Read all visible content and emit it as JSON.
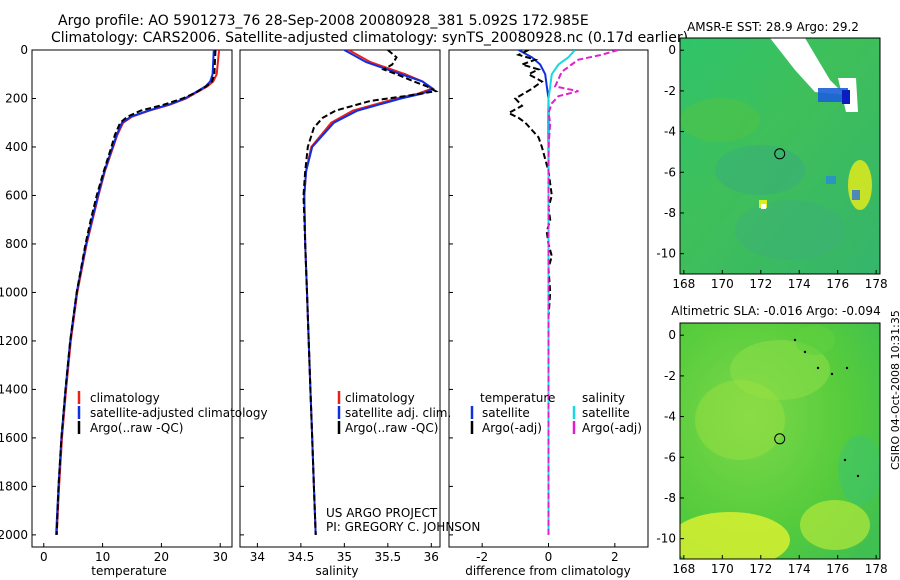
{
  "header": {
    "title_line1": "Argo profile: AO 5901273_76 28-Sep-2008 20080928_381 5.092S 172.985E",
    "title_line2": "Climatology: CARS2006. Satellite-adjusted climatology: synTS_20080928.nc (0.17d earlier)"
  },
  "stamp": "CSIRO 04-Oct-2008 10:31:35",
  "project": {
    "line1": "US ARGO PROJECT",
    "line2": "PI: GREGORY C. JOHNSON"
  },
  "colors": {
    "climatology": "#e8201e",
    "satellite": "#1030e0",
    "argo": "#000000",
    "sat_diff": "#1ad8e0",
    "argo_adj": "#e020d0"
  },
  "depth_axis": {
    "ylim": [
      2050,
      0
    ],
    "ticks": [
      0,
      200,
      400,
      600,
      800,
      1000,
      1200,
      1400,
      1600,
      1800,
      2000
    ]
  },
  "chart_data": [
    {
      "type": "line",
      "id": "temperature",
      "xlabel": "temperature",
      "xlim": [
        -2,
        32
      ],
      "xticks": [
        0,
        10,
        20,
        30
      ],
      "legend": [
        "climatology",
        "satellite-adjusted climatology",
        "Argo(..raw -QC)"
      ],
      "series": [
        {
          "name": "climatology",
          "depth": [
            0,
            50,
            100,
            130,
            150,
            175,
            200,
            225,
            250,
            275,
            300,
            350,
            400,
            500,
            600,
            700,
            800,
            1000,
            1200,
            1400,
            1600,
            1800,
            2000
          ],
          "values": [
            29.8,
            29.6,
            29.4,
            28.8,
            27.8,
            26.0,
            24.2,
            21.5,
            18.0,
            15.0,
            13.5,
            12.5,
            11.8,
            10.4,
            9.3,
            8.3,
            7.3,
            5.7,
            4.6,
            3.8,
            3.1,
            2.6,
            2.2
          ]
        },
        {
          "name": "satellite-adjusted climatology",
          "depth": [
            0,
            50,
            100,
            130,
            150,
            175,
            200,
            225,
            250,
            275,
            300,
            350,
            400,
            500,
            600,
            700,
            800,
            1000,
            1200,
            1400,
            1600,
            1800,
            2000
          ],
          "values": [
            28.9,
            28.8,
            28.7,
            28.3,
            27.5,
            25.8,
            24.0,
            21.3,
            17.8,
            14.8,
            13.3,
            12.4,
            11.7,
            10.3,
            9.2,
            8.2,
            7.2,
            5.6,
            4.5,
            3.7,
            3.0,
            2.5,
            2.1
          ]
        },
        {
          "name": "Argo(..raw -QC)",
          "depth": [
            0,
            50,
            100,
            130,
            150,
            175,
            200,
            225,
            250,
            275,
            300,
            350,
            400,
            500,
            600,
            700,
            800,
            1000,
            1200,
            1400,
            1600,
            1800,
            2000
          ],
          "values": [
            29.2,
            29.1,
            29.0,
            28.6,
            27.6,
            25.9,
            23.6,
            20.5,
            16.5,
            14.2,
            13.0,
            12.1,
            11.5,
            10.2,
            9.0,
            8.0,
            7.1,
            5.6,
            4.5,
            3.7,
            3.0,
            2.5,
            2.2
          ]
        }
      ]
    },
    {
      "type": "line",
      "id": "salinity",
      "xlabel": "salinity",
      "xlim": [
        33.8,
        36.1
      ],
      "xticks": [
        34,
        34.5,
        35,
        35.5,
        36
      ],
      "legend": [
        "climatology",
        "satellite adj. clim.",
        "Argo(..raw -QC)"
      ],
      "series": [
        {
          "name": "climatology",
          "depth": [
            0,
            50,
            100,
            130,
            160,
            180,
            200,
            250,
            300,
            400,
            500,
            600,
            800,
            1000,
            1200,
            1400,
            1600,
            1800,
            2000
          ],
          "values": [
            35.05,
            35.3,
            35.7,
            35.9,
            36.0,
            35.85,
            35.6,
            35.1,
            34.85,
            34.62,
            34.56,
            34.54,
            34.55,
            34.57,
            34.59,
            34.61,
            34.63,
            34.65,
            34.67
          ]
        },
        {
          "name": "satellite adj. clim.",
          "depth": [
            0,
            50,
            100,
            130,
            160,
            180,
            200,
            250,
            300,
            400,
            500,
            600,
            800,
            1000,
            1200,
            1400,
            1600,
            1800,
            2000
          ],
          "values": [
            35.0,
            35.25,
            35.65,
            35.9,
            36.02,
            35.9,
            35.65,
            35.15,
            34.88,
            34.63,
            34.56,
            34.54,
            34.55,
            34.57,
            34.59,
            34.61,
            34.63,
            34.65,
            34.67
          ]
        },
        {
          "name": "Argo(..raw -QC)",
          "depth": [
            0,
            30,
            60,
            80,
            100,
            130,
            150,
            170,
            190,
            210,
            250,
            280,
            320,
            400,
            500,
            600,
            800,
            1000,
            1200,
            1400,
            1600,
            1800,
            2000
          ],
          "values": [
            35.5,
            35.6,
            35.55,
            35.45,
            35.6,
            35.8,
            35.95,
            36.05,
            35.7,
            35.3,
            34.9,
            34.75,
            34.65,
            34.58,
            34.55,
            34.53,
            34.55,
            34.57,
            34.59,
            34.61,
            34.63,
            34.65,
            34.67
          ]
        }
      ]
    },
    {
      "type": "line",
      "id": "difference",
      "xlabel": "difference from climatology",
      "xlim": [
        -3,
        3
      ],
      "xticks": [
        -2,
        0,
        2
      ],
      "legend_left_title": "temperature",
      "legend_right_title": "salinity",
      "legend": [
        "satellite",
        "Argo(-adj)",
        "satellite",
        "Argo(-adj)"
      ],
      "series": [
        {
          "name": "temperature satellite",
          "depth": [
            0,
            30,
            60,
            100,
            150,
            200,
            300,
            500,
            800,
            1200,
            1600,
            2000
          ],
          "values": [
            -0.9,
            -0.5,
            -0.25,
            -0.1,
            -0.05,
            0.0,
            0.0,
            0.0,
            0.0,
            0.0,
            0.0,
            0.0
          ]
        },
        {
          "name": "temperature Argo(-adj)",
          "depth": [
            0,
            20,
            40,
            60,
            80,
            100,
            130,
            160,
            200,
            230,
            260,
            280,
            300,
            330,
            360,
            400,
            450,
            500,
            600,
            650,
            700,
            750,
            800,
            850,
            900,
            1000,
            1100,
            1200,
            1400,
            1600,
            1800,
            2000
          ],
          "values": [
            -0.6,
            -0.9,
            -0.4,
            -0.8,
            -0.3,
            -0.6,
            -0.2,
            -0.5,
            -1.0,
            -0.8,
            -1.2,
            -0.9,
            -0.7,
            -0.5,
            -0.3,
            -0.2,
            -0.1,
            0.0,
            0.1,
            0.0,
            0.05,
            -0.05,
            0.0,
            0.1,
            0.0,
            0.05,
            0.0,
            0.0,
            0.0,
            0.0,
            0.0,
            0.0
          ]
        },
        {
          "name": "salinity satellite",
          "depth": [
            0,
            30,
            60,
            100,
            150,
            200,
            300,
            500,
            800,
            1200,
            1600,
            2000
          ],
          "values": [
            0.8,
            0.6,
            0.3,
            0.1,
            0.05,
            0.0,
            0.02,
            0.0,
            0.0,
            0.0,
            0.0,
            0.0
          ]
        },
        {
          "name": "salinity Argo(-adj)",
          "depth": [
            0,
            20,
            40,
            60,
            90,
            120,
            150,
            170,
            190,
            220,
            260,
            300,
            400,
            500,
            800,
            1200,
            1600,
            2000
          ],
          "values": [
            2.1,
            1.6,
            0.9,
            0.7,
            0.4,
            0.3,
            0.2,
            0.9,
            0.3,
            0.1,
            0.0,
            0.05,
            0.0,
            0.0,
            0.0,
            0.0,
            0.0,
            0.0
          ]
        }
      ]
    },
    {
      "type": "heatmap",
      "id": "sst_map",
      "title": "AMSR-E SST: 28.9 Argo: 29.2",
      "xlim": [
        167.8,
        178.2
      ],
      "ylim": [
        -11,
        0.6
      ],
      "xticks": [
        168,
        170,
        172,
        174,
        176,
        178
      ],
      "yticks": [
        0,
        -2,
        -4,
        -6,
        -8,
        -10
      ],
      "marker": {
        "lon": 172.985,
        "lat": -5.092
      }
    },
    {
      "type": "heatmap",
      "id": "sla_map",
      "title": "Altimetric SLA: -0.016 Argo: -0.094",
      "xlim": [
        167.8,
        178.2
      ],
      "ylim": [
        -11,
        0.6
      ],
      "xticks": [
        168,
        170,
        172,
        174,
        176,
        178
      ],
      "yticks": [
        0,
        -2,
        -4,
        -6,
        -8,
        -10
      ],
      "marker": {
        "lon": 172.985,
        "lat": -5.092
      }
    }
  ]
}
